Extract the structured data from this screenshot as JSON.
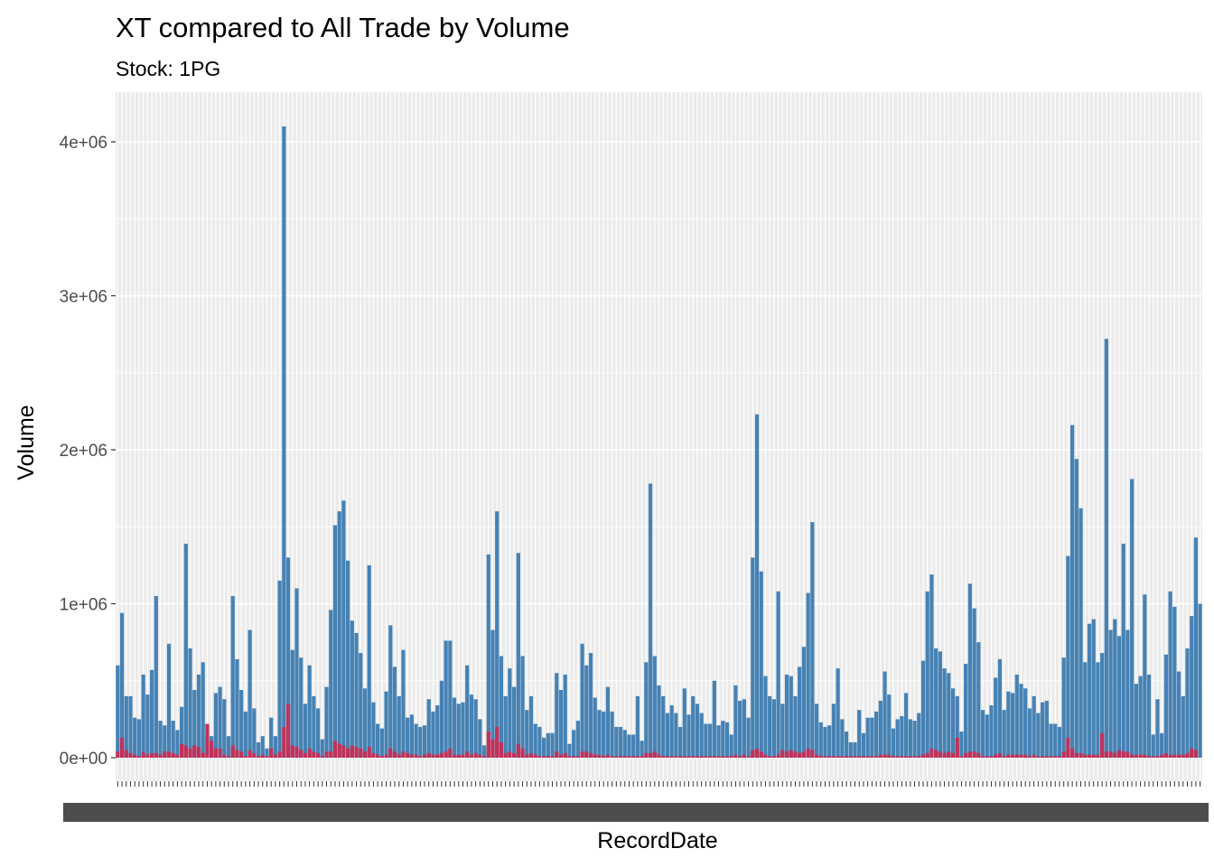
{
  "chart_data": {
    "type": "bar",
    "title": "XT compared to All Trade by Volume",
    "subtitle": "Stock: 1PG",
    "xlabel": "RecordDate",
    "ylabel": "Volume",
    "ylim": [
      0,
      4300000
    ],
    "y_ticks": [
      {
        "value": 0,
        "label": "0e+00"
      },
      {
        "value": 1000000,
        "label": "1e+06"
      },
      {
        "value": 2000000,
        "label": "2e+06"
      },
      {
        "value": 3000000,
        "label": "3e+06"
      },
      {
        "value": 4000000,
        "label": "4e+06"
      }
    ],
    "grid": true,
    "legend": "none",
    "colors": {
      "all_trade": "#4682b4",
      "xt": "#c0325a",
      "panel": "#ebebeb",
      "grid": "#ffffff"
    },
    "series": [
      {
        "values": [
          600000,
          940000,
          400000,
          400000,
          260000,
          250000,
          540000,
          410000,
          570000,
          1050000,
          240000,
          210000,
          740000,
          240000,
          180000,
          330000,
          1390000,
          710000,
          440000,
          540000,
          620000,
          140000,
          140000,
          420000,
          460000,
          380000,
          140000,
          1050000,
          640000,
          440000,
          300000,
          830000,
          320000,
          100000,
          140000,
          60000,
          260000,
          140000,
          1150000,
          4100000,
          1300000,
          700000,
          1100000,
          650000,
          350000,
          600000,
          400000,
          320000,
          120000,
          460000,
          960000,
          1510000,
          1600000,
          1670000,
          1280000,
          890000,
          810000,
          680000,
          450000,
          1250000,
          360000,
          220000,
          190000,
          430000,
          860000,
          590000,
          400000,
          700000,
          260000,
          280000,
          220000,
          200000,
          210000,
          380000,
          300000,
          340000,
          500000,
          760000,
          760000,
          390000,
          350000,
          360000,
          600000,
          410000,
          380000,
          250000,
          80000,
          1320000,
          830000,
          1600000,
          660000,
          400000,
          580000,
          460000,
          1330000,
          660000,
          310000,
          400000,
          220000,
          200000,
          130000,
          160000,
          160000,
          550000,
          440000,
          540000,
          90000,
          180000,
          240000,
          740000,
          600000,
          680000,
          390000,
          310000,
          300000,
          460000,
          300000,
          200000,
          200000,
          180000,
          150000,
          150000,
          400000,
          110000,
          620000,
          1780000,
          660000,
          470000,
          400000,
          290000,
          340000,
          290000,
          200000,
          450000,
          280000,
          400000,
          350000,
          290000,
          220000,
          220000,
          500000,
          210000,
          240000,
          230000,
          150000,
          470000,
          370000,
          380000,
          260000,
          1300000,
          2230000,
          1210000,
          530000,
          400000,
          380000,
          1080000,
          350000,
          540000,
          530000,
          400000,
          590000,
          720000,
          1070000,
          1530000,
          350000,
          230000,
          200000,
          210000,
          350000,
          580000,
          250000,
          170000,
          100000,
          100000,
          310000,
          160000,
          260000,
          260000,
          300000,
          370000,
          560000,
          410000,
          190000,
          250000,
          270000,
          420000,
          250000,
          240000,
          290000,
          630000,
          1080000,
          1190000,
          710000,
          690000,
          580000,
          550000,
          450000,
          400000,
          170000,
          610000,
          1130000,
          970000,
          750000,
          310000,
          280000,
          340000,
          520000,
          640000,
          310000,
          430000,
          420000,
          540000,
          480000,
          450000,
          320000,
          400000,
          290000,
          360000,
          370000,
          220000,
          220000,
          200000,
          650000,
          1310000,
          2160000,
          1940000,
          1620000,
          620000,
          870000,
          900000,
          620000,
          680000,
          2720000,
          830000,
          900000,
          790000,
          1390000,
          830000,
          1810000,
          480000,
          530000,
          1060000,
          540000,
          150000,
          380000,
          160000,
          670000,
          1080000,
          980000,
          560000,
          400000,
          710000,
          920000,
          1430000,
          1000000
        ]
      },
      {
        "values": [
          40000,
          130000,
          50000,
          30000,
          20000,
          10000,
          40000,
          20000,
          30000,
          30000,
          20000,
          40000,
          40000,
          30000,
          20000,
          90000,
          80000,
          60000,
          80000,
          70000,
          30000,
          220000,
          110000,
          60000,
          60000,
          20000,
          10000,
          80000,
          50000,
          40000,
          10000,
          50000,
          30000,
          10000,
          20000,
          10000,
          60000,
          20000,
          40000,
          200000,
          350000,
          80000,
          70000,
          50000,
          30000,
          60000,
          40000,
          30000,
          10000,
          40000,
          40000,
          110000,
          90000,
          80000,
          60000,
          80000,
          70000,
          60000,
          40000,
          70000,
          30000,
          20000,
          10000,
          20000,
          60000,
          40000,
          20000,
          40000,
          30000,
          20000,
          20000,
          10000,
          20000,
          30000,
          20000,
          20000,
          30000,
          40000,
          60000,
          20000,
          20000,
          20000,
          40000,
          20000,
          30000,
          20000,
          10000,
          170000,
          120000,
          200000,
          100000,
          30000,
          40000,
          30000,
          90000,
          60000,
          20000,
          30000,
          20000,
          10000,
          10000,
          10000,
          10000,
          40000,
          20000,
          30000,
          10000,
          10000,
          10000,
          40000,
          40000,
          30000,
          20000,
          20000,
          10000,
          20000,
          10000,
          10000,
          10000,
          10000,
          10000,
          10000,
          10000,
          10000,
          30000,
          30000,
          40000,
          20000,
          10000,
          10000,
          10000,
          10000,
          10000,
          10000,
          10000,
          10000,
          10000,
          10000,
          10000,
          10000,
          10000,
          10000,
          10000,
          10000,
          10000,
          20000,
          10000,
          20000,
          10000,
          50000,
          60000,
          40000,
          20000,
          10000,
          10000,
          20000,
          50000,
          40000,
          50000,
          40000,
          30000,
          40000,
          60000,
          50000,
          20000,
          10000,
          10000,
          10000,
          10000,
          10000,
          10000,
          10000,
          10000,
          10000,
          10000,
          10000,
          10000,
          10000,
          10000,
          20000,
          20000,
          20000,
          10000,
          10000,
          10000,
          10000,
          10000,
          10000,
          10000,
          20000,
          30000,
          60000,
          50000,
          40000,
          30000,
          40000,
          30000,
          130000,
          10000,
          30000,
          40000,
          40000,
          30000,
          10000,
          10000,
          10000,
          20000,
          30000,
          10000,
          20000,
          20000,
          20000,
          20000,
          20000,
          10000,
          20000,
          10000,
          10000,
          10000,
          10000,
          10000,
          10000,
          40000,
          130000,
          60000,
          30000,
          30000,
          20000,
          20000,
          20000,
          20000,
          160000,
          40000,
          40000,
          30000,
          50000,
          40000,
          40000,
          20000,
          20000,
          20000,
          20000,
          10000,
          10000,
          10000,
          20000,
          30000,
          20000,
          20000,
          20000,
          20000,
          30000,
          60000,
          50000
        ]
      }
    ]
  }
}
